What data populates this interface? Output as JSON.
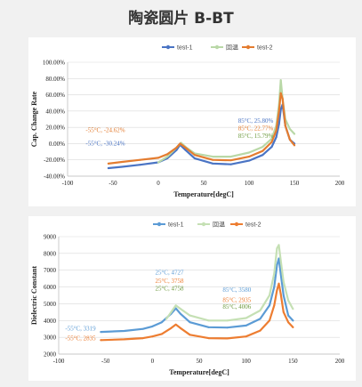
{
  "page": {
    "title": "陶瓷圆片 B-BT"
  },
  "chart_data": [
    {
      "type": "line",
      "xlabel": "Temperature[degC]",
      "ylabel": "Cap. Change Rate",
      "xlim": [
        -100,
        200
      ],
      "ylim": [
        -40,
        100
      ],
      "xticks": [
        "-100",
        "-50",
        "0",
        "50",
        "100",
        "150",
        "200"
      ],
      "yticks": [
        "-40.00%",
        "-20.00%",
        "0.00%",
        "20.00%",
        "40.00%",
        "60.00%",
        "80.00%",
        "100.00%"
      ],
      "grid": true,
      "legend_position": "top",
      "series": [
        {
          "name": "test-1",
          "color": "#4a74c4",
          "x": [
            -55,
            -40,
            -20,
            0,
            10,
            20,
            24,
            30,
            40,
            60,
            80,
            100,
            115,
            125,
            130,
            133,
            135,
            137,
            140,
            145,
            150
          ],
          "y": [
            -30.2,
            -28.5,
            -26,
            -23,
            -18,
            -8,
            -1.5,
            -8,
            -18,
            -24.5,
            -25.5,
            -21,
            -14,
            -4,
            8,
            24,
            42,
            48,
            22,
            5,
            0
          ]
        },
        {
          "name": "回温",
          "color": "#b9d8a7",
          "x": [
            0,
            10,
            20,
            25,
            30,
            40,
            60,
            80,
            100,
            115,
            125,
            130,
            133,
            135,
            137,
            140,
            145,
            150
          ],
          "y": [
            -23,
            -16,
            -5,
            1,
            -4,
            -12,
            -16,
            -16,
            -11,
            -4,
            6,
            22,
            48,
            78,
            55,
            30,
            18,
            12
          ]
        },
        {
          "name": "test-2",
          "color": "#e47c2f",
          "x": [
            -55,
            -40,
            -20,
            0,
            10,
            20,
            24,
            30,
            40,
            60,
            80,
            100,
            115,
            125,
            130,
            133,
            135,
            137,
            140,
            145,
            150
          ],
          "y": [
            -24.6,
            -22.5,
            -20,
            -17.5,
            -13,
            -5,
            0,
            -5,
            -14,
            -20,
            -20.5,
            -16,
            -9,
            2,
            16,
            40,
            62,
            55,
            22,
            5,
            -2
          ]
        }
      ],
      "annotations": [
        {
          "text": "-55°C, -30.24%",
          "color": "#4a74c4"
        },
        {
          "text": "-55°C, -24.62%",
          "color": "#e47c2f"
        },
        {
          "text": "85°C, 25.80%",
          "color": "#4a74c4"
        },
        {
          "text": "85°C, 22.77%",
          "color": "#e47c2f"
        },
        {
          "text": "85°C, 15.79%",
          "color": "#6e9a3f"
        }
      ]
    },
    {
      "type": "line",
      "xlabel": "Temperature[degC]",
      "ylabel": "Dielectric Constant",
      "xlim": [
        -100,
        200
      ],
      "ylim": [
        2000,
        9000
      ],
      "xticks": [
        "-100",
        "-50",
        "0",
        "50",
        "100",
        "150",
        "200"
      ],
      "yticks": [
        "2000",
        "3000",
        "4000",
        "5000",
        "6000",
        "7000",
        "8000",
        "9000"
      ],
      "grid": true,
      "legend_position": "top",
      "series": [
        {
          "name": "test-1",
          "color": "#5b9bd5",
          "x": [
            -55,
            -30,
            -10,
            0,
            10,
            20,
            25,
            30,
            40,
            60,
            80,
            100,
            115,
            125,
            130,
            133,
            135,
            137,
            140,
            145,
            150
          ],
          "y": [
            3319,
            3380,
            3500,
            3650,
            3900,
            4400,
            4727,
            4400,
            3900,
            3600,
            3580,
            3700,
            4100,
            4900,
            6000,
            7300,
            7700,
            6800,
            5500,
            4300,
            4000
          ]
        },
        {
          "name": "回温",
          "color": "#c5e0b4",
          "x": [
            15,
            20,
            25,
            30,
            40,
            60,
            80,
            100,
            115,
            125,
            130,
            133,
            135,
            137,
            140,
            145,
            150
          ],
          "y": [
            4100,
            4500,
            4900,
            4700,
            4300,
            4000,
            4000,
            4150,
            4600,
            5500,
            6800,
            8300,
            8500,
            7600,
            6300,
            5200,
            4700
          ]
        },
        {
          "name": "test-2",
          "color": "#ed7d31",
          "x": [
            -55,
            -30,
            -10,
            0,
            10,
            20,
            25,
            30,
            40,
            60,
            80,
            100,
            115,
            125,
            130,
            133,
            135,
            137,
            140,
            145,
            150
          ],
          "y": [
            2835,
            2880,
            2950,
            3050,
            3200,
            3550,
            3758,
            3550,
            3150,
            2950,
            2935,
            3050,
            3400,
            4000,
            4900,
            5800,
            6200,
            5600,
            4500,
            3900,
            3600
          ]
        }
      ],
      "annotations": [
        {
          "text": "25°C, 4727",
          "color": "#5b9bd5"
        },
        {
          "text": "25°C, 3758",
          "color": "#ed7d31"
        },
        {
          "text": "25°C,  4758",
          "color": "#6e9a3f"
        },
        {
          "text": "85°C, 3580",
          "color": "#5b9bd5"
        },
        {
          "text": "85°C, 2935",
          "color": "#ed7d31"
        },
        {
          "text": "85°C, 4006",
          "color": "#6e9a3f"
        },
        {
          "text": "-55°C, 3319",
          "color": "#5b9bd5"
        },
        {
          "text": "-55°C, 2835",
          "color": "#ed7d31"
        }
      ]
    }
  ]
}
